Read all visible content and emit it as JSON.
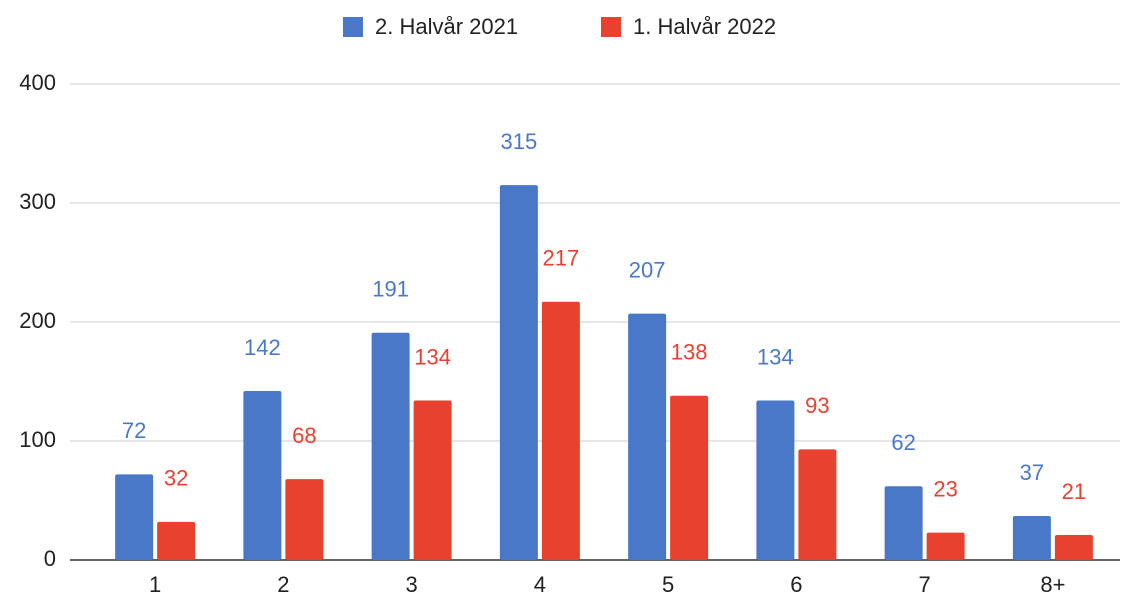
{
  "chart_data": {
    "type": "bar",
    "categories": [
      "1",
      "2",
      "3",
      "4",
      "5",
      "6",
      "7",
      "8+"
    ],
    "series": [
      {
        "name": "2. Halvår 2021",
        "color": "#4a78c9",
        "values": [
          72,
          142,
          191,
          315,
          207,
          134,
          62,
          37
        ]
      },
      {
        "name": "1. Halvår 2022",
        "color": "#e8412f",
        "values": [
          32,
          68,
          134,
          217,
          138,
          93,
          23,
          21
        ]
      }
    ],
    "ylim": [
      0,
      400
    ],
    "yticks": [
      0,
      100,
      200,
      300,
      400
    ],
    "grid": true,
    "legend": "top"
  }
}
